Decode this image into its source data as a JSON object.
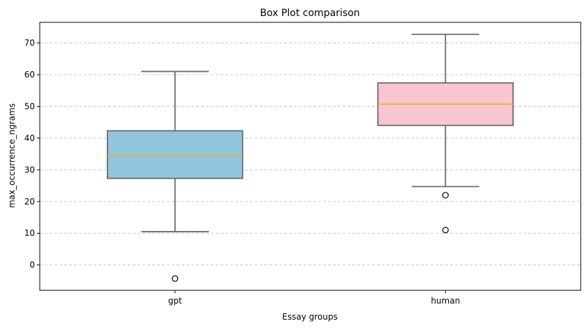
{
  "chart_data": {
    "type": "box",
    "title": "Box Plot comparison",
    "xlabel": "Essay groups",
    "ylabel": "max_occurrence_ngrams",
    "categories": [
      "gpt",
      "human"
    ],
    "ylim": [
      -8,
      76.5
    ],
    "yticks": [
      0,
      10,
      20,
      30,
      40,
      50,
      60,
      70
    ],
    "grid": "y-dashed",
    "boxes": [
      {
        "name": "gpt",
        "whisker_low": 10.5,
        "q1": 27.3,
        "median": 34.5,
        "q3": 42.3,
        "whisker_high": 61.0,
        "outliers": [
          -4.3
        ],
        "color": "#92c5de"
      },
      {
        "name": "human",
        "whisker_low": 24.7,
        "q1": 44.0,
        "median": 50.7,
        "q3": 57.4,
        "whisker_high": 72.7,
        "outliers": [
          22.0,
          11.0
        ],
        "color": "#f7c6cf"
      }
    ],
    "median_color": "#f5a623",
    "line_color": "#6b6b6b"
  }
}
